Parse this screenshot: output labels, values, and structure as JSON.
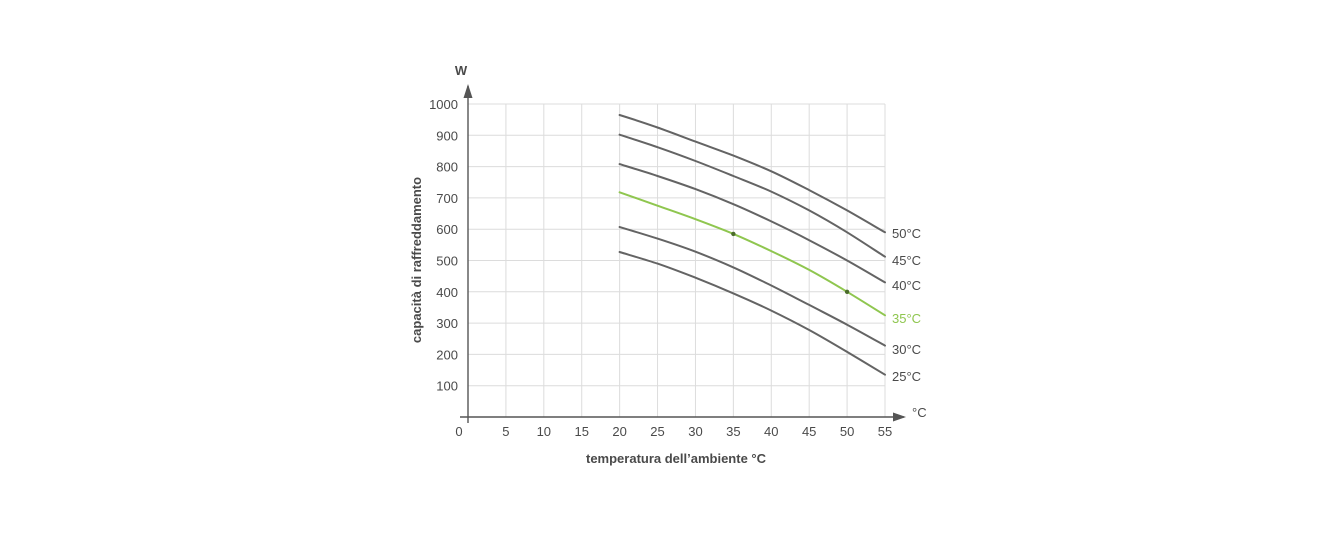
{
  "chart_data": {
    "type": "line",
    "xlabel": "temperatura dell’ambiente °C",
    "ylabel": "capacità di raffreddamento",
    "x_unit": "°C",
    "y_unit": "W",
    "xlim": [
      0,
      55
    ],
    "ylim": [
      0,
      1000
    ],
    "x_ticks": [
      0,
      5,
      10,
      15,
      20,
      25,
      30,
      35,
      40,
      45,
      50,
      55
    ],
    "y_ticks": [
      100,
      200,
      300,
      400,
      500,
      600,
      700,
      800,
      900,
      1000
    ],
    "grid": true,
    "x": [
      20,
      25,
      30,
      35,
      40,
      45,
      50,
      55
    ],
    "series": [
      {
        "name": "50°C",
        "color": "#646464",
        "values": [
          965,
          925,
          880,
          835,
          785,
          725,
          660,
          590
        ]
      },
      {
        "name": "45°C",
        "color": "#646464",
        "values": [
          902,
          862,
          818,
          770,
          720,
          660,
          590,
          512
        ]
      },
      {
        "name": "40°C",
        "color": "#646464",
        "values": [
          808,
          770,
          728,
          680,
          625,
          565,
          500,
          430
        ]
      },
      {
        "name": "35°C",
        "color": "#8fc64f",
        "highlight": true,
        "values": [
          718,
          675,
          632,
          585,
          530,
          470,
          400,
          325
        ],
        "markers": [
          {
            "x": 35,
            "y": 585
          },
          {
            "x": 50,
            "y": 400
          }
        ]
      },
      {
        "name": "30°C",
        "color": "#646464",
        "values": [
          607,
          570,
          528,
          478,
          420,
          358,
          295,
          228
        ]
      },
      {
        "name": "25°C",
        "color": "#646464",
        "values": [
          527,
          490,
          445,
          395,
          340,
          278,
          208,
          135
        ]
      }
    ]
  }
}
